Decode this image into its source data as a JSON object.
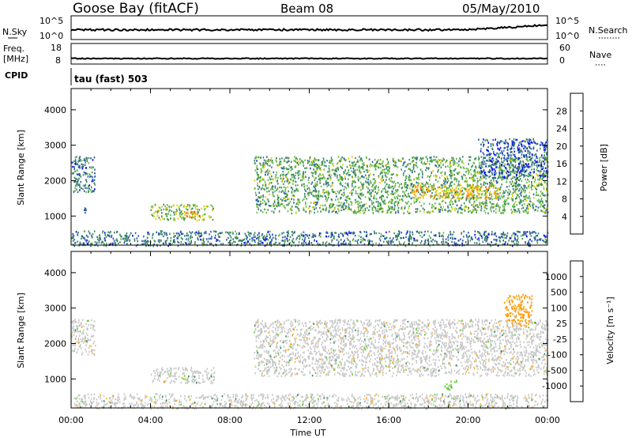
{
  "header": {
    "station": "Goose Bay (fitACF)",
    "beam": "Beam 08",
    "date": "05/May/2010"
  },
  "noise_panel": {
    "left_label": "N.Sky",
    "left_ticks": [
      "10^5",
      "10^0"
    ],
    "right_label": "N.Search",
    "right_ticks": [
      "10^5",
      "10^0"
    ]
  },
  "freq_panel": {
    "left_label_1": "Freq.",
    "left_label_2": "[MHz]",
    "left_ticks": [
      "18",
      "8"
    ],
    "right_label": "Nave",
    "right_ticks": [
      "60",
      "0"
    ]
  },
  "cpid": {
    "label": "CPID",
    "value": "tau (fast) 503"
  },
  "colors": {
    "power": [
      "#0000ff",
      "#2a5aa8",
      "#3a8a5a",
      "#66bb44",
      "#ddcc00",
      "#ff9900",
      "#ff5500",
      "#ff0000"
    ],
    "velocity": [
      "#ff0000",
      "#ff6600",
      "#ff9900",
      "#ffbb33",
      "#c8c8c8",
      "#66cc33",
      "#3a8a5a",
      "#2a5aa8",
      "#0000cc"
    ]
  },
  "chart_data": [
    {
      "type": "heatmap",
      "ylabel": "Slant Range [km]",
      "ylim": [
        180,
        4600
      ],
      "y_ticks": [
        1000,
        2000,
        3000,
        4000
      ],
      "x_ticks": [
        "00:00",
        "04:00",
        "08:00",
        "12:00",
        "16:00",
        "20:00",
        "00:00"
      ],
      "colorbar": {
        "label": "Power [dB]",
        "ticks": [
          "4",
          "8",
          "12",
          "16",
          "20",
          "24",
          "28"
        ],
        "range": [
          0,
          30
        ]
      },
      "regions": [
        {
          "t0": 0.0,
          "t1": 1.2,
          "r0": 1700,
          "r1": 2700,
          "value": 8
        },
        {
          "t0": 0.6,
          "t1": 0.9,
          "r0": 1000,
          "r1": 1300,
          "value": 6
        },
        {
          "t0": 4.0,
          "t1": 7.2,
          "r0": 900,
          "r1": 1350,
          "value": 14
        },
        {
          "t0": 5.6,
          "t1": 6.4,
          "r0": 950,
          "r1": 1150,
          "value": 22
        },
        {
          "t0": 9.2,
          "t1": 24.0,
          "r0": 1100,
          "r1": 2700,
          "value": 12
        },
        {
          "t0": 17.0,
          "t1": 21.5,
          "r0": 1500,
          "r1": 1900,
          "value": 20
        },
        {
          "t0": 20.5,
          "t1": 24.0,
          "r0": 2100,
          "r1": 3200,
          "value": 6
        },
        {
          "t0": 0.0,
          "t1": 24.0,
          "r0": 180,
          "r1": 600,
          "value": 8
        }
      ]
    },
    {
      "type": "heatmap",
      "ylabel": "Slant Range [km]",
      "ylim": [
        180,
        4600
      ],
      "y_ticks": [
        1000,
        2000,
        3000,
        4000
      ],
      "x_ticks": [
        "00:00",
        "04:00",
        "08:00",
        "12:00",
        "16:00",
        "20:00",
        "00:00"
      ],
      "xlabel": "Time UT",
      "colorbar": {
        "label": "Velocity [m s⁻¹]",
        "ticks": [
          "1000",
          "500",
          "100",
          "25",
          "-25",
          "-100",
          "-500",
          "-1000"
        ]
      },
      "regions": [
        {
          "t0": 0.0,
          "t1": 1.2,
          "r0": 1700,
          "r1": 2700,
          "value": 0
        },
        {
          "t0": 4.0,
          "t1": 7.2,
          "r0": 900,
          "r1": 1350,
          "value": 0
        },
        {
          "t0": 9.2,
          "t1": 24.0,
          "r0": 1100,
          "r1": 2700,
          "value": 0
        },
        {
          "t0": 18.8,
          "t1": 19.4,
          "r0": 700,
          "r1": 1000,
          "value": 100
        },
        {
          "t0": 21.8,
          "t1": 23.2,
          "r0": 2500,
          "r1": 3400,
          "value": -100
        },
        {
          "t0": 0.0,
          "t1": 24.0,
          "r0": 180,
          "r1": 600,
          "value": 0
        }
      ]
    }
  ]
}
